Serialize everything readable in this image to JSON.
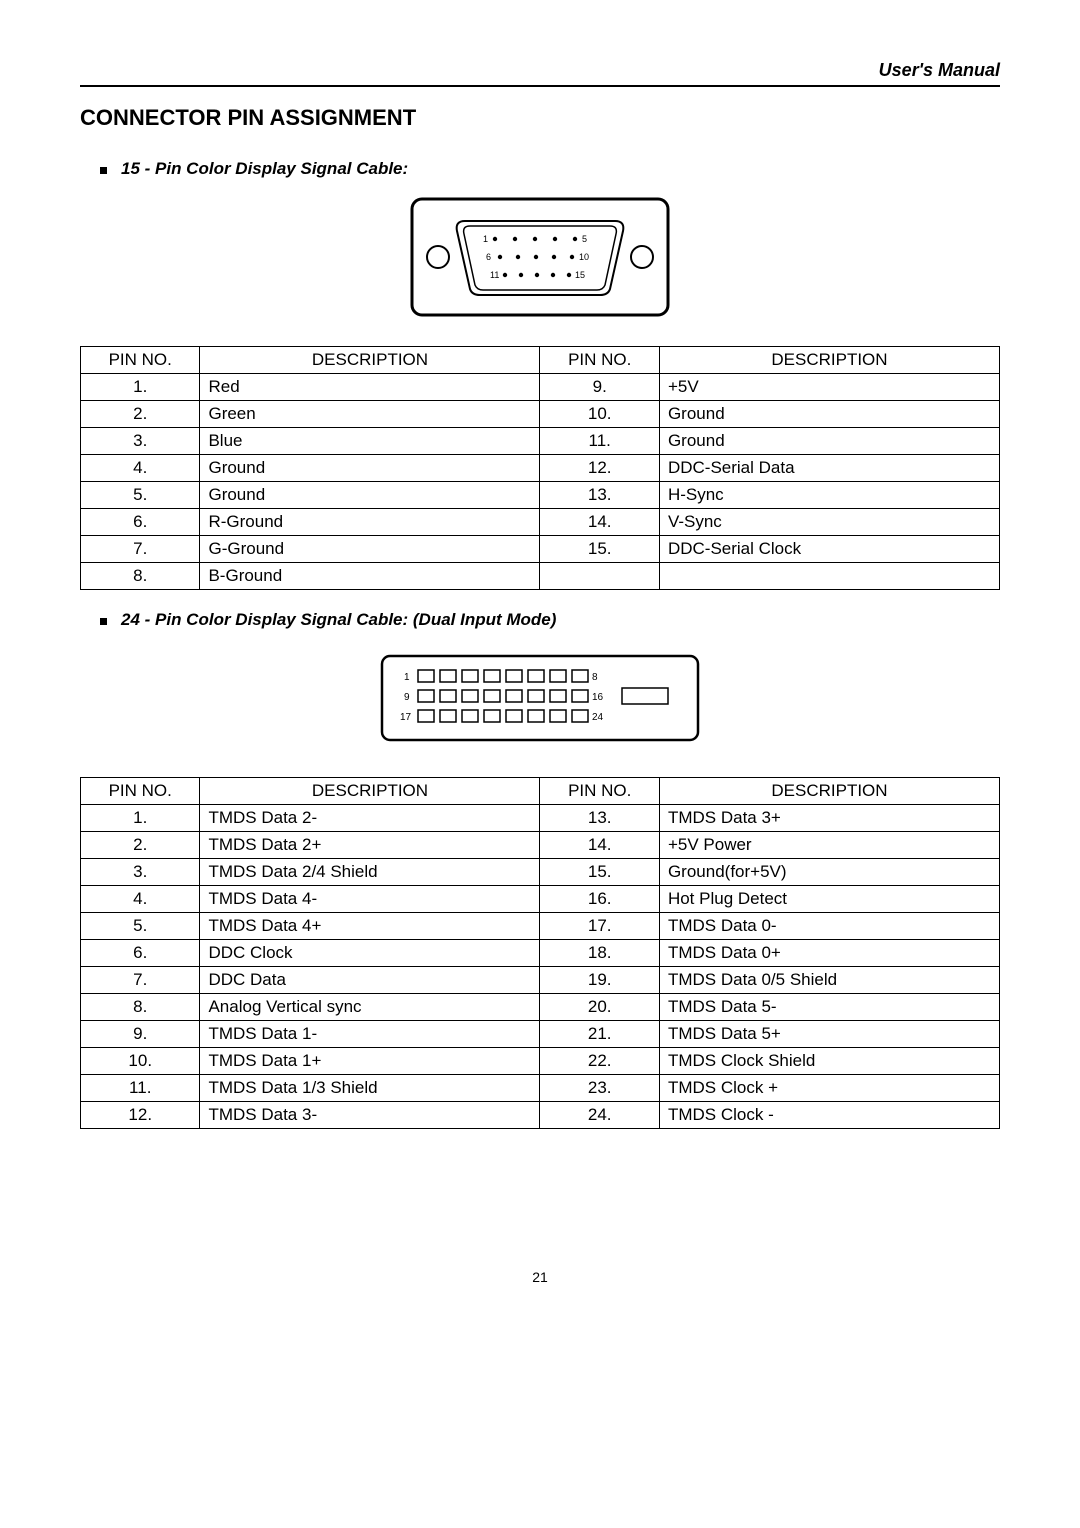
{
  "header": {
    "right_text": "User's Manual"
  },
  "title": "CONNECTOR PIN ASSIGNMENT",
  "section1": {
    "heading": "15 - Pin Color Display Signal Cable:",
    "table": {
      "columns": [
        "PIN NO.",
        "DESCRIPTION",
        "PIN NO.",
        "DESCRIPTION"
      ],
      "rows": [
        [
          "1.",
          "Red",
          "9.",
          "+5V"
        ],
        [
          "2.",
          "Green",
          "10.",
          "Ground"
        ],
        [
          "3.",
          "Blue",
          "11.",
          "Ground"
        ],
        [
          "4.",
          "Ground",
          "12.",
          "DDC-Serial Data"
        ],
        [
          "5.",
          "Ground",
          "13.",
          "H-Sync"
        ],
        [
          "6.",
          "R-Ground",
          "14.",
          "V-Sync"
        ],
        [
          "7.",
          "G-Ground",
          "15.",
          "DDC-Serial Clock"
        ],
        [
          "8.",
          "B-Ground",
          "",
          ""
        ]
      ]
    },
    "diagram": {
      "row_starts": [
        "1",
        "6",
        "11"
      ],
      "row_ends": [
        "5",
        "10",
        "15"
      ],
      "pins_per_row": 5
    }
  },
  "section2": {
    "heading": "24 - Pin Color Display Signal Cable: (Dual Input Mode)",
    "table": {
      "columns": [
        "PIN NO.",
        "DESCRIPTION",
        "PIN NO.",
        "DESCRIPTION"
      ],
      "rows": [
        [
          "1.",
          "TMDS Data 2-",
          "13.",
          "TMDS Data 3+"
        ],
        [
          "2.",
          "TMDS Data 2+",
          "14.",
          "+5V Power"
        ],
        [
          "3.",
          "TMDS Data 2/4 Shield",
          "15.",
          "Ground(for+5V)"
        ],
        [
          "4.",
          "TMDS Data 4-",
          "16.",
          "Hot Plug Detect"
        ],
        [
          "5.",
          "TMDS Data 4+",
          "17.",
          "TMDS Data 0-"
        ],
        [
          "6.",
          "DDC Clock",
          "18.",
          "TMDS Data 0+"
        ],
        [
          "7.",
          "DDC Data",
          "19.",
          "TMDS Data 0/5 Shield"
        ],
        [
          "8.",
          "Analog Vertical sync",
          "20.",
          "TMDS Data 5-"
        ],
        [
          "9.",
          "TMDS Data 1-",
          "21.",
          "TMDS Data 5+"
        ],
        [
          "10.",
          "TMDS Data 1+",
          "22.",
          "TMDS Clock Shield"
        ],
        [
          "11.",
          "TMDS Data 1/3 Shield",
          "23.",
          "TMDS Clock +"
        ],
        [
          "12.",
          "TMDS Data 3-",
          "24.",
          "TMDS Clock -"
        ]
      ]
    },
    "diagram": {
      "row_starts": [
        "1",
        "9",
        "17"
      ],
      "row_ends": [
        "8",
        "16",
        "24"
      ],
      "pins_per_row": 8
    }
  },
  "page_number": "21",
  "style": {
    "background_color": "#ffffff",
    "text_color": "#000000",
    "border_color": "#000000",
    "heading_fontsize": 22,
    "subheading_fontsize": 17,
    "table_fontsize": 17,
    "pagenum_fontsize": 14,
    "col_widths_pct": [
      13,
      37,
      13,
      37
    ]
  }
}
